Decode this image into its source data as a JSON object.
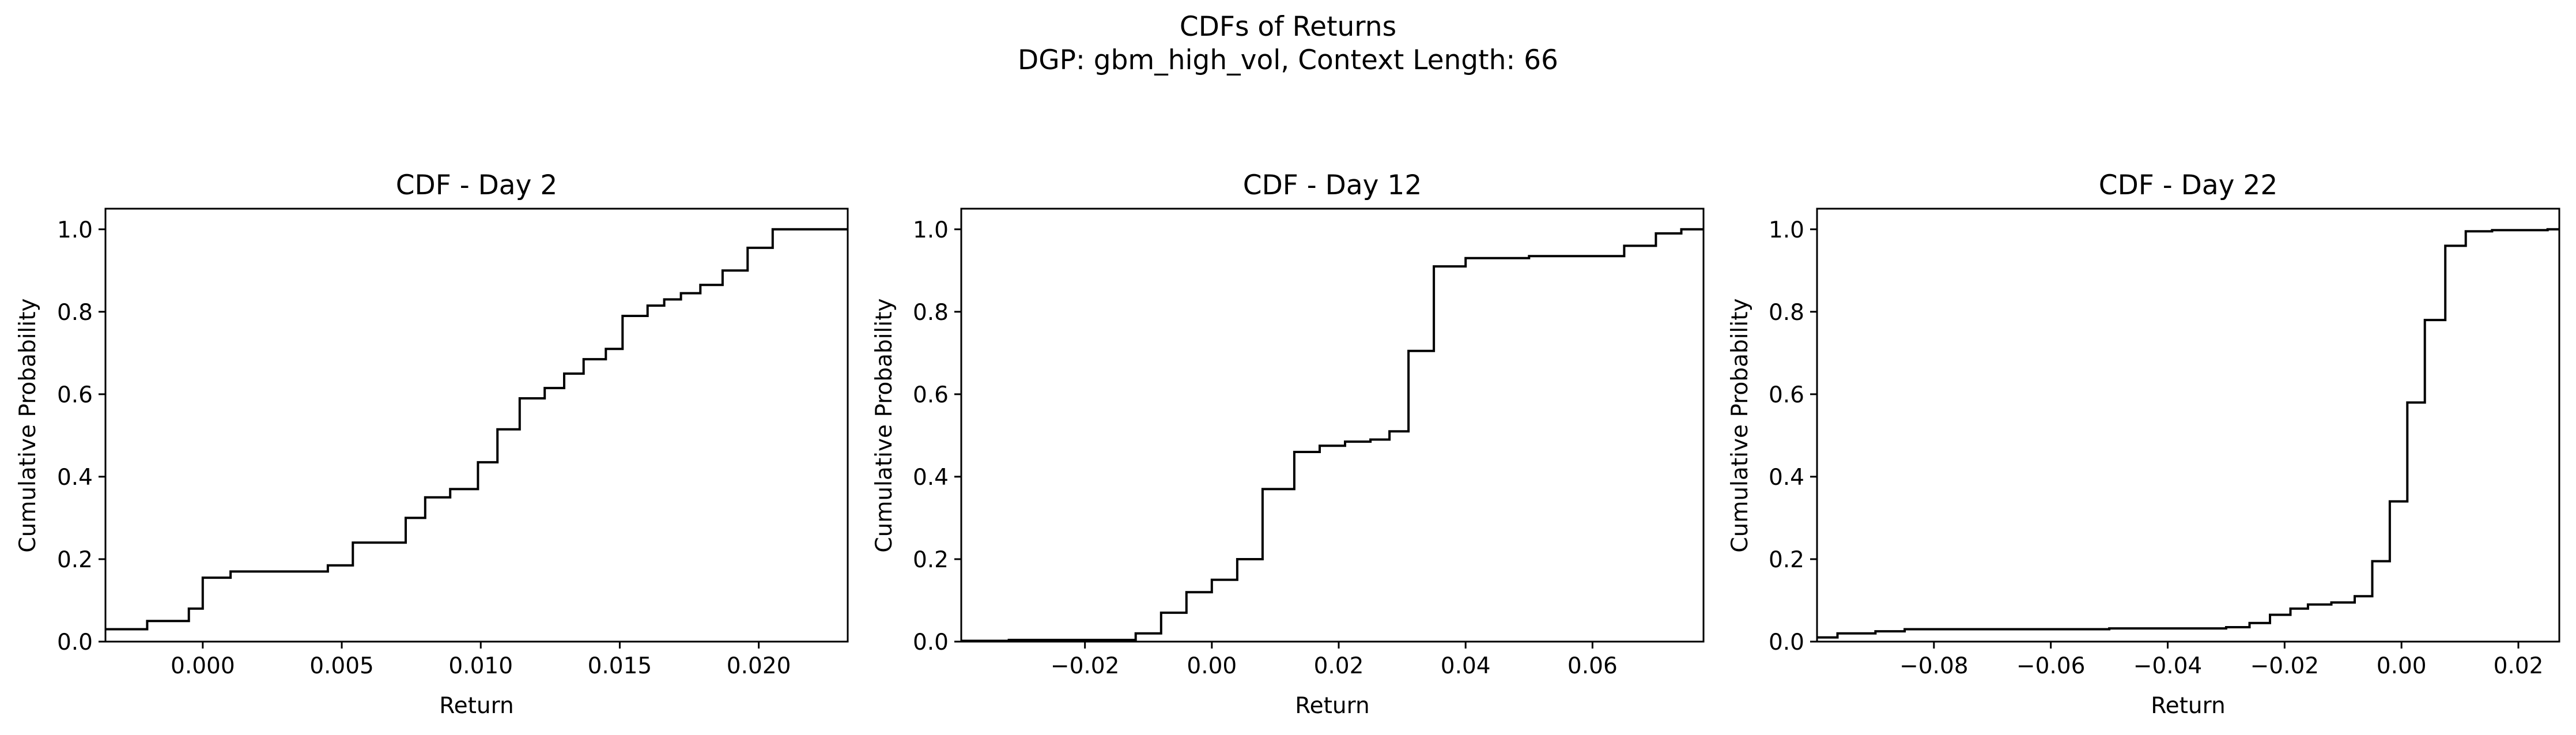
{
  "figure": {
    "title_line1": "CDFs of Returns",
    "title_line2": "DGP: gbm_high_vol, Context Length: 66"
  },
  "style": {
    "line_color": "#000000",
    "background": "#ffffff"
  },
  "chart_data": [
    {
      "type": "line",
      "step": "post",
      "title": "CDF - Day 2",
      "xlabel": "Return",
      "ylabel": "Cumulative Probability",
      "xlim": [
        -0.0035,
        0.0232
      ],
      "ylim": [
        0,
        1.05
      ],
      "xticks": [
        0.0,
        0.005,
        0.01,
        0.015,
        0.02
      ],
      "xtick_labels": [
        "0.000",
        "0.005",
        "0.010",
        "0.015",
        "0.020"
      ],
      "yticks": [
        0.0,
        0.2,
        0.4,
        0.6,
        0.8,
        1.0
      ],
      "ytick_labels": [
        "0.0",
        "0.2",
        "0.4",
        "0.6",
        "0.8",
        "1.0"
      ],
      "series": [
        {
          "x": [
            -0.0035,
            -0.002,
            -0.0005,
            0.0,
            0.001,
            0.0045,
            0.0054,
            0.0073,
            0.008,
            0.0089,
            0.0099,
            0.0106,
            0.0114,
            0.0123,
            0.013,
            0.0137,
            0.0145,
            0.0151,
            0.016,
            0.0166,
            0.0172,
            0.0179,
            0.0187,
            0.0196,
            0.0205,
            0.0214,
            0.0223,
            0.0232
          ],
          "y": [
            0.03,
            0.05,
            0.08,
            0.155,
            0.17,
            0.185,
            0.24,
            0.3,
            0.35,
            0.37,
            0.435,
            0.515,
            0.59,
            0.615,
            0.65,
            0.685,
            0.71,
            0.79,
            0.815,
            0.83,
            0.845,
            0.865,
            0.9,
            0.955,
            1.0,
            1.0,
            1.0,
            1.0
          ]
        }
      ]
    },
    {
      "type": "line",
      "step": "post",
      "title": "CDF - Day 12",
      "xlabel": "Return",
      "ylabel": "Cumulative Probability",
      "xlim": [
        -0.0395,
        0.0775
      ],
      "ylim": [
        0,
        1.05
      ],
      "xticks": [
        -0.02,
        0.0,
        0.02,
        0.04,
        0.06
      ],
      "xtick_labels": [
        "−0.02",
        "0.00",
        "0.02",
        "0.04",
        "0.06"
      ],
      "yticks": [
        0.0,
        0.2,
        0.4,
        0.6,
        0.8,
        1.0
      ],
      "ytick_labels": [
        "0.0",
        "0.2",
        "0.4",
        "0.6",
        "0.8",
        "1.0"
      ],
      "series": [
        {
          "x": [
            -0.0395,
            -0.032,
            -0.012,
            -0.008,
            -0.004,
            0.0,
            0.004,
            0.008,
            0.013,
            0.017,
            0.021,
            0.025,
            0.028,
            0.031,
            0.035,
            0.04,
            0.05,
            0.06,
            0.065,
            0.07,
            0.074,
            0.0775
          ],
          "y": [
            0.002,
            0.004,
            0.02,
            0.07,
            0.12,
            0.15,
            0.2,
            0.37,
            0.46,
            0.475,
            0.485,
            0.49,
            0.51,
            0.705,
            0.91,
            0.93,
            0.935,
            0.935,
            0.96,
            0.99,
            1.0,
            1.0
          ]
        }
      ]
    },
    {
      "type": "line",
      "step": "post",
      "title": "CDF - Day 22",
      "xlabel": "Return",
      "ylabel": "Cumulative Probability",
      "xlim": [
        -0.1,
        0.027
      ],
      "ylim": [
        0,
        1.05
      ],
      "xticks": [
        -0.08,
        -0.06,
        -0.04,
        -0.02,
        0.0,
        0.02
      ],
      "xtick_labels": [
        "−0.08",
        "−0.06",
        "−0.04",
        "−0.02",
        "0.00",
        "0.02"
      ],
      "yticks": [
        0.0,
        0.2,
        0.4,
        0.6,
        0.8,
        1.0
      ],
      "ytick_labels": [
        "0.0",
        "0.2",
        "0.4",
        "0.6",
        "0.8",
        "1.0"
      ],
      "series": [
        {
          "x": [
            -0.1,
            -0.0965,
            -0.09,
            -0.085,
            -0.05,
            -0.03,
            -0.026,
            -0.0225,
            -0.019,
            -0.016,
            -0.012,
            -0.008,
            -0.005,
            -0.002,
            0.001,
            0.004,
            0.0075,
            0.011,
            0.0155,
            0.025,
            0.027
          ],
          "y": [
            0.01,
            0.02,
            0.025,
            0.03,
            0.032,
            0.035,
            0.045,
            0.065,
            0.08,
            0.09,
            0.095,
            0.11,
            0.195,
            0.34,
            0.58,
            0.78,
            0.96,
            0.995,
            0.998,
            1.0,
            1.0
          ]
        }
      ]
    }
  ]
}
